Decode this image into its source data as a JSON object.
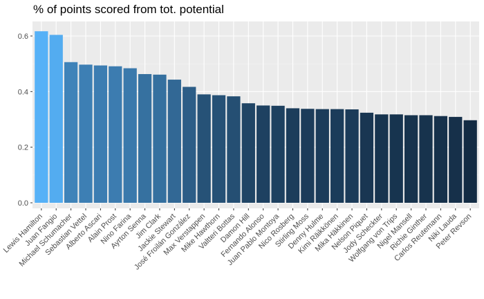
{
  "chart_data": {
    "type": "bar",
    "title": "% of points scored from tot. potential",
    "xlabel": "",
    "ylabel": "",
    "ylim": [
      0,
      0.65
    ],
    "yticks": [
      0.0,
      0.2,
      0.4,
      0.6
    ],
    "ytick_labels": [
      "0.0",
      "0.2",
      "0.4",
      "0.6"
    ],
    "grid": true,
    "legend": "none",
    "colors": {
      "panel": "#ebebeb",
      "grid_major": "#ffffff",
      "fill_low": "#132b43",
      "fill_high": "#56b1f7"
    },
    "categories": [
      "Lewis Hamilton",
      "Juan Fangio",
      "Michael Schumacher",
      "Sebastian Vettel",
      "Alberto Ascari",
      "Alain Prost",
      "Nino Farina",
      "Ayrton Senna",
      "Jim Clark",
      "Jackie Stewart",
      "José Froilán González",
      "Max Verstappen",
      "Mike Hawthorn",
      "Valtteri Bottas",
      "Damon Hill",
      "Fernando Alonso",
      "Juan Pablo Montoya",
      "Nico Rosberg",
      "Stirling Moss",
      "Denny Hulme",
      "Kimi Räikkönen",
      "Mika Häkkinen",
      "Nelson Piquet",
      "Jody Scheckter",
      "Wolfgang von Trips",
      "Nigel Mansell",
      "Richie Ginther",
      "Carlos Reutemann",
      "Niki Lauda",
      "Peter Revson"
    ],
    "values": [
      0.617,
      0.604,
      0.506,
      0.497,
      0.494,
      0.491,
      0.484,
      0.463,
      0.461,
      0.443,
      0.417,
      0.39,
      0.387,
      0.383,
      0.358,
      0.35,
      0.349,
      0.34,
      0.338,
      0.337,
      0.337,
      0.336,
      0.324,
      0.318,
      0.318,
      0.315,
      0.315,
      0.312,
      0.309,
      0.297
    ]
  }
}
